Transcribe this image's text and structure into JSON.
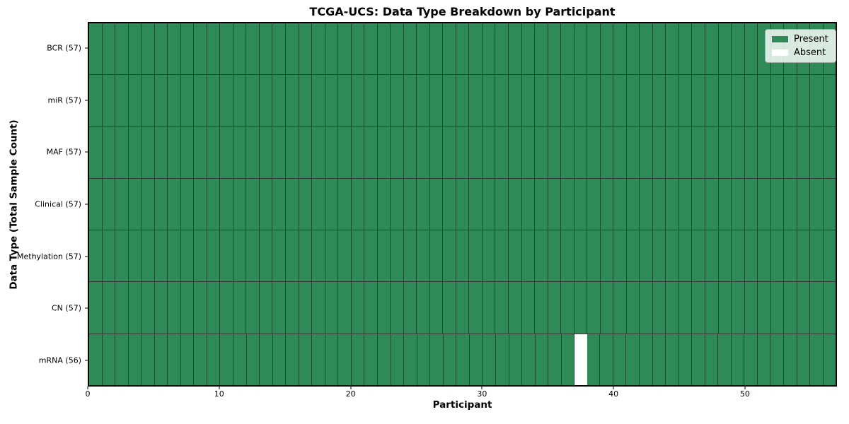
{
  "chart_data": {
    "type": "heatmap",
    "title": "TCGA-UCS: Data Type Breakdown by Participant",
    "xlabel": "Participant",
    "ylabel": "Data Type (Total Sample Count)",
    "x_ticks": [
      0,
      10,
      20,
      30,
      40,
      50
    ],
    "x_range": [
      0,
      57
    ],
    "n_participants": 57,
    "grid": "cell-borders-on",
    "rows": [
      {
        "label": "BCR (57)",
        "data_type": "BCR",
        "present_count": 57,
        "absent_participants": []
      },
      {
        "label": "miR (57)",
        "data_type": "miR",
        "present_count": 57,
        "absent_participants": []
      },
      {
        "label": "MAF (57)",
        "data_type": "MAF",
        "present_count": 57,
        "absent_participants": []
      },
      {
        "label": "Clinical (57)",
        "data_type": "Clinical",
        "present_count": 57,
        "absent_participants": []
      },
      {
        "label": "Methylation (57)",
        "data_type": "Methylation",
        "present_count": 57,
        "absent_participants": []
      },
      {
        "label": "CN (57)",
        "data_type": "CN",
        "present_count": 57,
        "absent_participants": []
      },
      {
        "label": "mRNA (56)",
        "data_type": "mRNA",
        "present_count": 56,
        "absent_participants": [
          37
        ]
      }
    ],
    "legend": {
      "position": "upper right",
      "entries": [
        {
          "label": "Present",
          "color": "#2e8b57"
        },
        {
          "label": "Absent",
          "color": "#ffffff"
        }
      ]
    },
    "colors": {
      "present": "#2e8b57",
      "absent": "#ffffff",
      "cell_border": "rgba(0,0,0,0.45)",
      "row_border": "rgba(0,0,0,0.78)",
      "frame": "#000000"
    }
  }
}
